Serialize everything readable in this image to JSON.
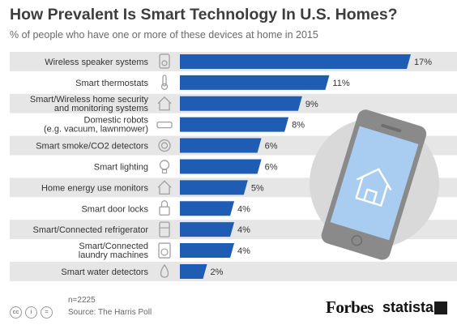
{
  "title": "How Prevalent Is Smart Technology In U.S. Homes?",
  "subtitle": "% of people who have one or more of these devices at home in 2015",
  "footer": {
    "n": "n=2225",
    "source": "Source: The Harris Poll",
    "cc_icons": [
      "cc-icon",
      "attribution-icon",
      "no-derivatives-icon"
    ],
    "brand_forbes": "Forbes",
    "brand_statista": "statista"
  },
  "colors": {
    "bar": "#1f5cb3",
    "row_shade": "#e6e6e6",
    "icon": "#a0a0a0",
    "phone_circle": "#d9d9d9",
    "phone_body": "#8a8a8a",
    "phone_screen": "#a9cdf0"
  },
  "chart_data": {
    "type": "bar",
    "orientation": "horizontal",
    "categories": [
      [
        "Wireless speaker systems"
      ],
      [
        "Smart thermostats"
      ],
      [
        "Smart/Wireless home security",
        "and monitoring systems"
      ],
      [
        "Domestic robots",
        "(e.g. vacuum, lawnmower)"
      ],
      [
        "Smart smoke/CO2 detectors"
      ],
      [
        "Smart lighting"
      ],
      [
        "Home energy use monitors"
      ],
      [
        "Smart door locks"
      ],
      [
        "Smart/Connected refrigerator"
      ],
      [
        "Smart/Connected",
        "laundry machines"
      ],
      [
        "Smart water detectors"
      ]
    ],
    "icons": [
      "speaker-icon",
      "thermometer-icon",
      "house-icon",
      "robot-icon",
      "smoke-detector-icon",
      "lightbulb-icon",
      "house-icon",
      "lock-icon",
      "refrigerator-icon",
      "washing-machine-icon",
      "water-drop-icon"
    ],
    "values": [
      17,
      11,
      9,
      8,
      6,
      6,
      5,
      4,
      4,
      4,
      2
    ],
    "value_labels": [
      "17%",
      "11%",
      "9%",
      "8%",
      "6%",
      "6%",
      "5%",
      "4%",
      "4%",
      "4%",
      "2%"
    ],
    "xlim": [
      0,
      17
    ],
    "grid": false,
    "legend": "none"
  }
}
